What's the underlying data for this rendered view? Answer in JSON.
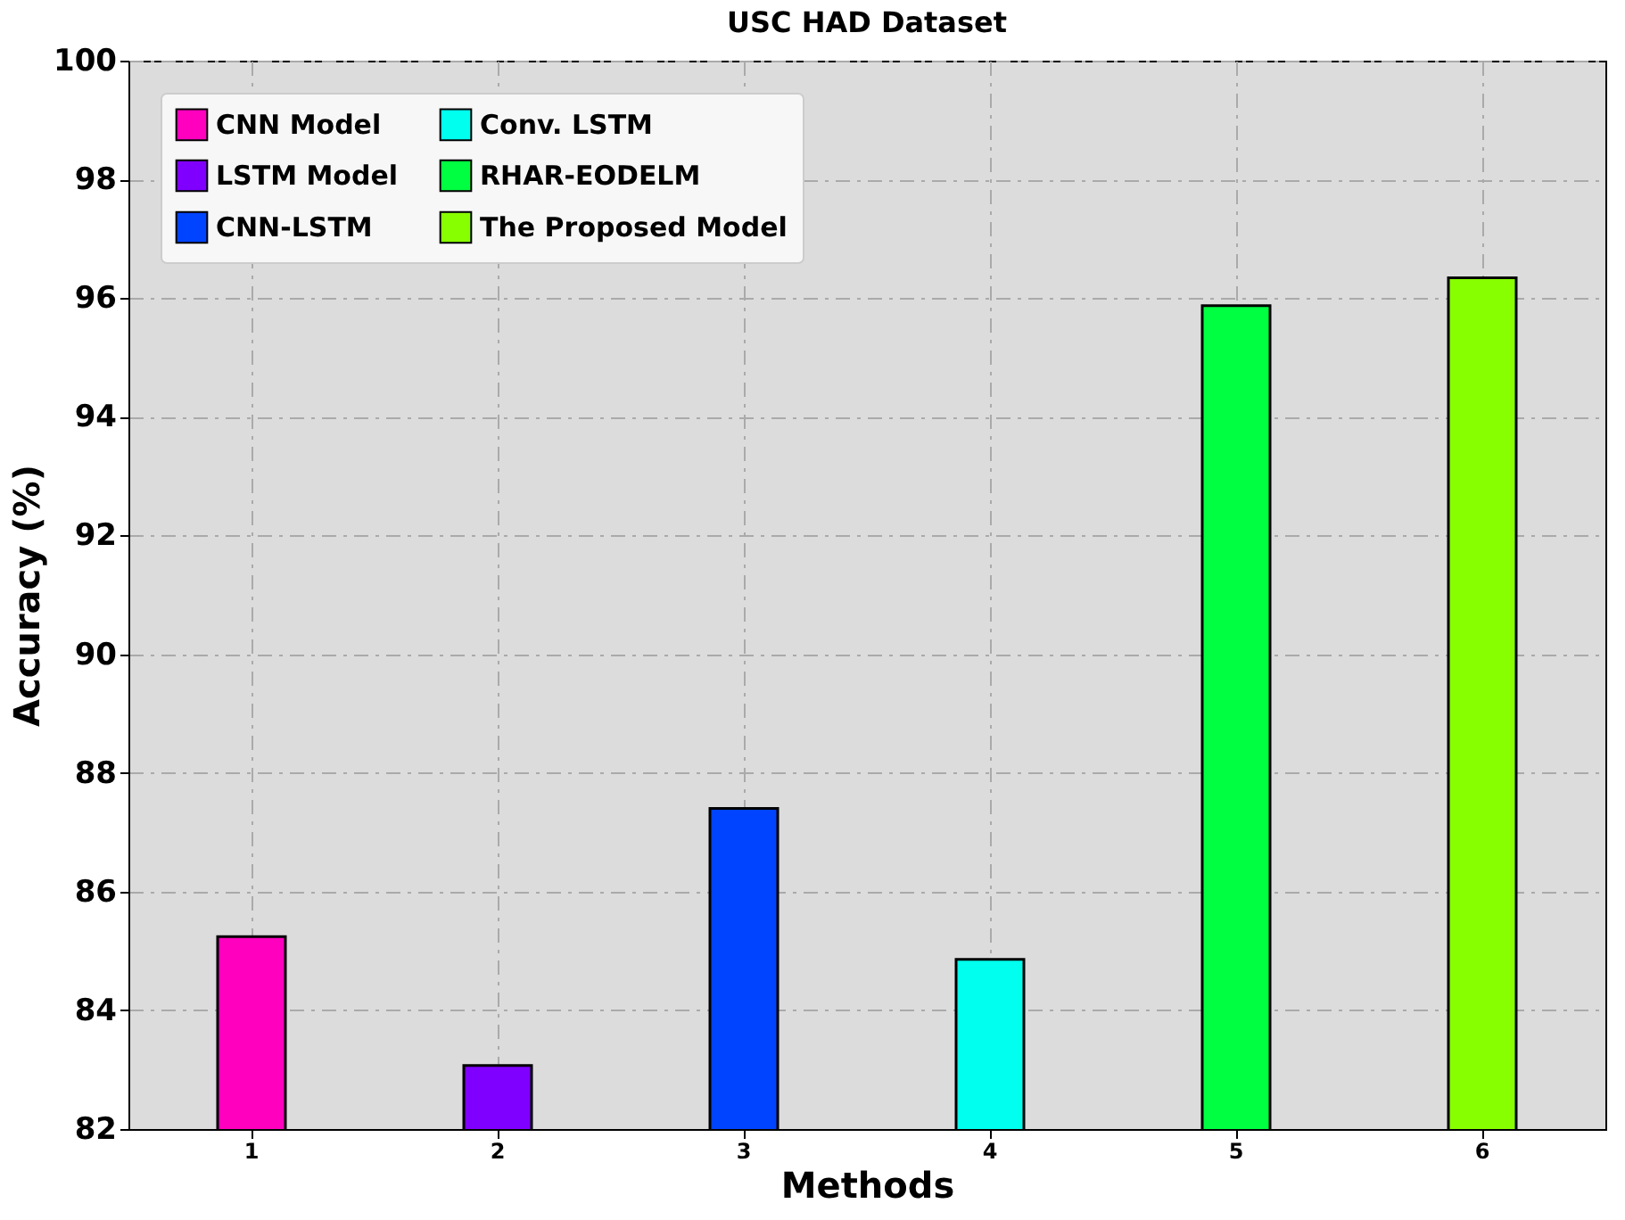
{
  "chart_data": {
    "type": "bar",
    "title": "USC HAD Dataset",
    "xlabel": "Methods",
    "ylabel": "Accuracy (%)",
    "categories": [
      "1",
      "2",
      "3",
      "4",
      "5",
      "6"
    ],
    "series": [
      {
        "name": "CNN Model",
        "color": "#ff00bf",
        "values": [
          85.24,
          null,
          null,
          null,
          null,
          null
        ]
      },
      {
        "name": "LSTM Model",
        "color": "#8000ff",
        "values": [
          null,
          83.07,
          null,
          null,
          null,
          null
        ]
      },
      {
        "name": "CNN-LSTM",
        "color": "#0044ff",
        "values": [
          null,
          null,
          87.4,
          null,
          null,
          null
        ]
      },
      {
        "name": "Conv. LSTM",
        "color": "#00ffee",
        "values": [
          null,
          null,
          null,
          84.86,
          null,
          null
        ]
      },
      {
        "name": "RHAR-EODELM",
        "color": "#00ff40",
        "values": [
          null,
          null,
          null,
          null,
          95.87,
          null
        ]
      },
      {
        "name": "The Proposed Model",
        "color": "#88ff00",
        "values": [
          null,
          null,
          null,
          null,
          null,
          96.34
        ]
      }
    ],
    "ylim": [
      82,
      100
    ],
    "yticks": [
      82,
      84,
      86,
      88,
      90,
      92,
      94,
      96,
      98,
      100
    ],
    "grid": true,
    "legend": "top left"
  }
}
